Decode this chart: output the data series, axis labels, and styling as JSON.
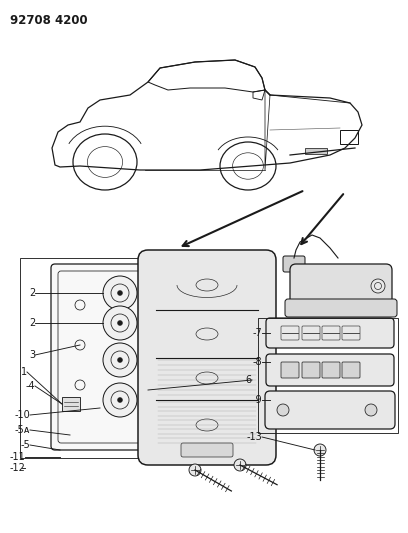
{
  "title": "92708 4200",
  "bg_color": "#ffffff",
  "line_color": "#1a1a1a",
  "fig_width": 4.08,
  "fig_height": 5.33,
  "dpi": 100
}
